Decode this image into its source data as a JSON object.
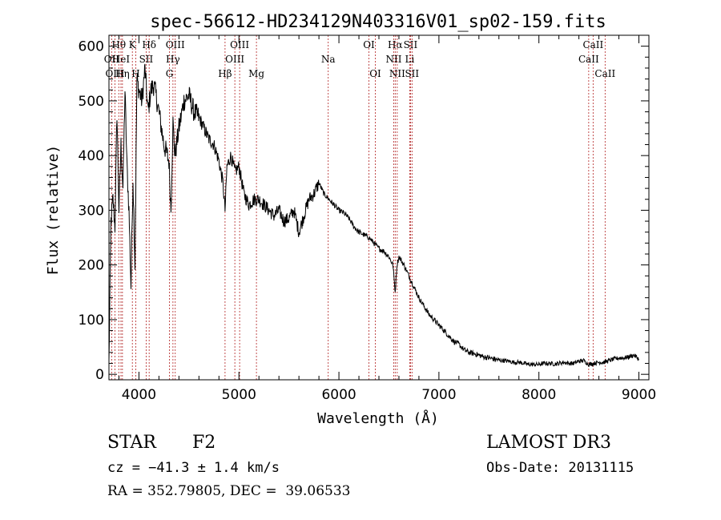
{
  "chart_data": {
    "type": "line",
    "title": "spec-56612-HD234129N403316V01_sp02-159.fits",
    "xlabel": "Wavelength (Å)",
    "ylabel": "Flux (relative)",
    "xlim": [
      3700,
      9100
    ],
    "ylim": [
      -10,
      620
    ],
    "xticks": [
      4000,
      5000,
      6000,
      7000,
      8000,
      9000
    ],
    "yticks": [
      0,
      100,
      200,
      300,
      400,
      500,
      600
    ],
    "grid": false,
    "series": [
      {
        "name": "flux",
        "x": [
          3700,
          3720,
          3740,
          3760,
          3780,
          3800,
          3820,
          3840,
          3860,
          3880,
          3900,
          3920,
          3940,
          3960,
          3980,
          4000,
          4030,
          4060,
          4090,
          4120,
          4150,
          4200,
          4250,
          4300,
          4320,
          4340,
          4360,
          4400,
          4450,
          4500,
          4550,
          4600,
          4650,
          4700,
          4750,
          4800,
          4840,
          4861,
          4880,
          4920,
          4960,
          5000,
          5050,
          5100,
          5150,
          5200,
          5250,
          5300,
          5350,
          5400,
          5450,
          5500,
          5550,
          5600,
          5650,
          5700,
          5750,
          5800,
          5850,
          5900,
          5950,
          6000,
          6050,
          6100,
          6150,
          6200,
          6250,
          6300,
          6350,
          6400,
          6450,
          6500,
          6540,
          6563,
          6580,
          6600,
          6650,
          6700,
          6750,
          6800,
          6850,
          6900,
          6950,
          7000,
          7050,
          7100,
          7150,
          7200,
          7250,
          7300,
          7350,
          7400,
          7450,
          7500,
          7550,
          7600,
          7650,
          7700,
          7750,
          7800,
          7850,
          7900,
          7950,
          8000,
          8050,
          8100,
          8150,
          8200,
          8250,
          8300,
          8350,
          8400,
          8450,
          8500,
          8550,
          8600,
          8650,
          8700,
          8750,
          8800,
          8850,
          8900,
          8950,
          9000
        ],
        "values": [
          20,
          280,
          320,
          270,
          480,
          300,
          420,
          340,
          520,
          380,
          300,
          160,
          360,
          200,
          540,
          520,
          500,
          560,
          480,
          520,
          530,
          480,
          420,
          390,
          300,
          460,
          400,
          450,
          500,
          510,
          480,
          470,
          450,
          430,
          420,
          390,
          350,
          300,
          380,
          400,
          370,
          380,
          330,
          310,
          320,
          320,
          310,
          300,
          290,
          300,
          280,
          285,
          300,
          260,
          290,
          320,
          330,
          350,
          330,
          320,
          310,
          300,
          295,
          285,
          270,
          260,
          255,
          250,
          240,
          230,
          225,
          215,
          200,
          150,
          200,
          215,
          200,
          180,
          160,
          140,
          125,
          110,
          100,
          90,
          80,
          70,
          60,
          55,
          45,
          40,
          38,
          35,
          32,
          30,
          28,
          26,
          25,
          24,
          22,
          22,
          20,
          18,
          18,
          18,
          20,
          20,
          19,
          20,
          22,
          20,
          20,
          24,
          25,
          18,
          20,
          22,
          22,
          25,
          28,
          30,
          30,
          32,
          35,
          28
        ]
      }
    ],
    "lines": [
      {
        "label": "Hθ",
        "x": 3798,
        "row": 1
      },
      {
        "label": "OII",
        "x": 3727,
        "row": 2
      },
      {
        "label": "OIII",
        "x": 3760,
        "row": 3
      },
      {
        "label": "HeI",
        "x": 3820,
        "row": 2
      },
      {
        "label": "Hη",
        "x": 3835,
        "row": 3
      },
      {
        "label": "K",
        "x": 3934,
        "row": 1
      },
      {
        "label": "SII",
        "x": 4072,
        "row": 2
      },
      {
        "label": "H",
        "x": 3968,
        "row": 3
      },
      {
        "label": "Hδ",
        "x": 4102,
        "row": 1
      },
      {
        "label": "OIII",
        "x": 4363,
        "row": 1
      },
      {
        "label": "Hγ",
        "x": 4340,
        "row": 2
      },
      {
        "label": "G",
        "x": 4305,
        "row": 3
      },
      {
        "label": "Hβ",
        "x": 4861,
        "row": 3
      },
      {
        "label": "OIII",
        "x": 5007,
        "row": 1
      },
      {
        "label": "OIII",
        "x": 4959,
        "row": 2
      },
      {
        "label": "Mg",
        "x": 5175,
        "row": 3
      },
      {
        "label": "Na",
        "x": 5893,
        "row": 2
      },
      {
        "label": "OI",
        "x": 6300,
        "row": 1
      },
      {
        "label": "OI",
        "x": 6364,
        "row": 3
      },
      {
        "label": "Hα",
        "x": 6563,
        "row": 1
      },
      {
        "label": "NII",
        "x": 6548,
        "row": 2
      },
      {
        "label": "NII",
        "x": 6583,
        "row": 3
      },
      {
        "label": "SII",
        "x": 6716,
        "row": 1
      },
      {
        "label": "Li",
        "x": 6708,
        "row": 2
      },
      {
        "label": "SII",
        "x": 6731,
        "row": 3
      },
      {
        "label": "CaII",
        "x": 8542,
        "row": 1
      },
      {
        "label": "CaII",
        "x": 8498,
        "row": 2
      },
      {
        "label": "CaII",
        "x": 8662,
        "row": 3
      }
    ]
  },
  "info": {
    "class_label": "STAR",
    "subclass": "F2",
    "survey": "LAMOST DR3",
    "cz": "cz = −41.3 ± 1.4 km/s",
    "obs_date": "Obs-Date: 20131115",
    "coords": "RA = 352.79805, DEC =  39.06533"
  }
}
